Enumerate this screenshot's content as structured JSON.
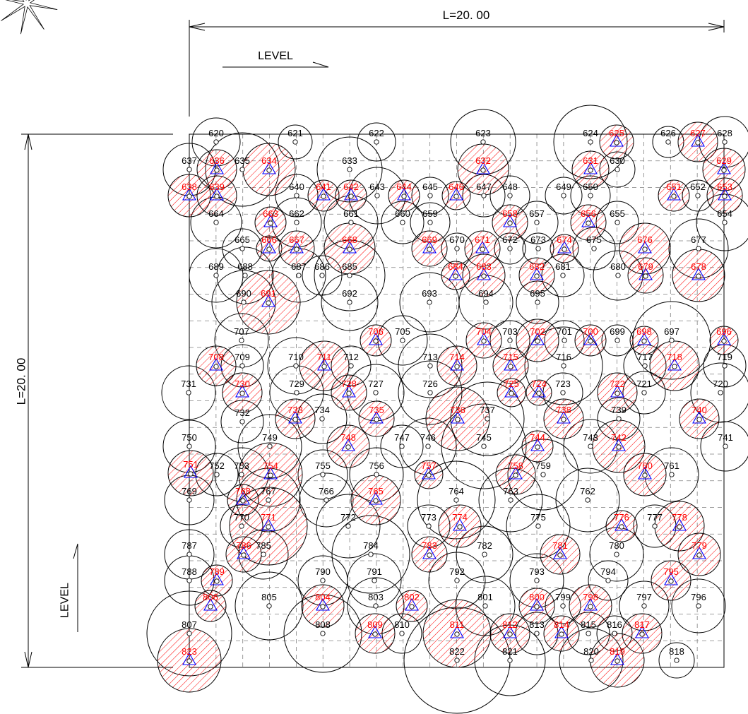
{
  "drawing": {
    "top_dimension": "L=20. 00",
    "left_dimension": "L=20. 00",
    "top_level_label": "LEVEL",
    "left_level_label": "LEVEL"
  },
  "colors": {
    "line": "#000000",
    "label": "#000000",
    "marked_label": "#ff0000",
    "hatch": "#ff0000",
    "triangle": "#0000ff",
    "grid": "#808080"
  },
  "points": [
    {
      "label": "620",
      "marked": false
    },
    {
      "label": "621",
      "marked": false
    },
    {
      "label": "622",
      "marked": false
    },
    {
      "label": "623",
      "marked": false
    },
    {
      "label": "624",
      "marked": false
    },
    {
      "label": "625",
      "marked": true
    },
    {
      "label": "626",
      "marked": false
    },
    {
      "label": "627",
      "marked": true
    },
    {
      "label": "628",
      "marked": false
    },
    {
      "label": "637",
      "marked": false
    },
    {
      "label": "636",
      "marked": true
    },
    {
      "label": "635",
      "marked": false
    },
    {
      "label": "634",
      "marked": true
    },
    {
      "label": "633",
      "marked": false
    },
    {
      "label": "632",
      "marked": true
    },
    {
      "label": "631",
      "marked": true
    },
    {
      "label": "630",
      "marked": false
    },
    {
      "label": "629",
      "marked": true
    },
    {
      "label": "638",
      "marked": true
    },
    {
      "label": "639",
      "marked": true
    },
    {
      "label": "640",
      "marked": false
    },
    {
      "label": "641",
      "marked": true
    },
    {
      "label": "642",
      "marked": true
    },
    {
      "label": "643",
      "marked": false
    },
    {
      "label": "644",
      "marked": true
    },
    {
      "label": "645",
      "marked": false
    },
    {
      "label": "646",
      "marked": true
    },
    {
      "label": "647",
      "marked": false
    },
    {
      "label": "648",
      "marked": false
    },
    {
      "label": "649",
      "marked": false
    },
    {
      "label": "650",
      "marked": false
    },
    {
      "label": "651",
      "marked": true
    },
    {
      "label": "652",
      "marked": false
    },
    {
      "label": "653",
      "marked": true
    },
    {
      "label": "664",
      "marked": false
    },
    {
      "label": "663",
      "marked": true
    },
    {
      "label": "662",
      "marked": false
    },
    {
      "label": "661",
      "marked": false
    },
    {
      "label": "660",
      "marked": false
    },
    {
      "label": "659",
      "marked": false
    },
    {
      "label": "658",
      "marked": true
    },
    {
      "label": "657",
      "marked": false
    },
    {
      "label": "656",
      "marked": true
    },
    {
      "label": "655",
      "marked": false
    },
    {
      "label": "654",
      "marked": false
    },
    {
      "label": "665",
      "marked": false
    },
    {
      "label": "666",
      "marked": true
    },
    {
      "label": "667",
      "marked": true
    },
    {
      "label": "668",
      "marked": true
    },
    {
      "label": "669",
      "marked": true
    },
    {
      "label": "670",
      "marked": false
    },
    {
      "label": "671",
      "marked": true
    },
    {
      "label": "672",
      "marked": false
    },
    {
      "label": "673",
      "marked": false
    },
    {
      "label": "674",
      "marked": true
    },
    {
      "label": "675",
      "marked": false
    },
    {
      "label": "676",
      "marked": true
    },
    {
      "label": "677",
      "marked": false
    },
    {
      "label": "689",
      "marked": false
    },
    {
      "label": "688",
      "marked": false
    },
    {
      "label": "687",
      "marked": false
    },
    {
      "label": "686",
      "marked": false
    },
    {
      "label": "685",
      "marked": false
    },
    {
      "label": "684",
      "marked": true
    },
    {
      "label": "683",
      "marked": true
    },
    {
      "label": "682",
      "marked": true
    },
    {
      "label": "681",
      "marked": false
    },
    {
      "label": "680",
      "marked": false
    },
    {
      "label": "679",
      "marked": true
    },
    {
      "label": "678",
      "marked": true
    },
    {
      "label": "690",
      "marked": false
    },
    {
      "label": "691",
      "marked": true
    },
    {
      "label": "692",
      "marked": false
    },
    {
      "label": "693",
      "marked": false
    },
    {
      "label": "694",
      "marked": false
    },
    {
      "label": "695",
      "marked": false
    },
    {
      "label": "707",
      "marked": false
    },
    {
      "label": "706",
      "marked": true
    },
    {
      "label": "705",
      "marked": false
    },
    {
      "label": "704",
      "marked": true
    },
    {
      "label": "703",
      "marked": false
    },
    {
      "label": "702",
      "marked": true
    },
    {
      "label": "701",
      "marked": false
    },
    {
      "label": "700",
      "marked": true
    },
    {
      "label": "699",
      "marked": false
    },
    {
      "label": "698",
      "marked": true
    },
    {
      "label": "697",
      "marked": false
    },
    {
      "label": "696",
      "marked": true
    },
    {
      "label": "708",
      "marked": true
    },
    {
      "label": "709",
      "marked": false
    },
    {
      "label": "710",
      "marked": false
    },
    {
      "label": "711",
      "marked": true
    },
    {
      "label": "712",
      "marked": false
    },
    {
      "label": "713",
      "marked": false
    },
    {
      "label": "714",
      "marked": true
    },
    {
      "label": "715",
      "marked": true
    },
    {
      "label": "716",
      "marked": false
    },
    {
      "label": "717",
      "marked": false
    },
    {
      "label": "718",
      "marked": true
    },
    {
      "label": "719",
      "marked": false
    },
    {
      "label": "731",
      "marked": false
    },
    {
      "label": "730",
      "marked": true
    },
    {
      "label": "729",
      "marked": false
    },
    {
      "label": "728",
      "marked": true
    },
    {
      "label": "727",
      "marked": false
    },
    {
      "label": "726",
      "marked": false
    },
    {
      "label": "725",
      "marked": true
    },
    {
      "label": "724",
      "marked": true
    },
    {
      "label": "723",
      "marked": false
    },
    {
      "label": "722",
      "marked": true
    },
    {
      "label": "721",
      "marked": false
    },
    {
      "label": "720",
      "marked": false
    },
    {
      "label": "732",
      "marked": false
    },
    {
      "label": "733",
      "marked": true
    },
    {
      "label": "734",
      "marked": false
    },
    {
      "label": "735",
      "marked": true
    },
    {
      "label": "736",
      "marked": true
    },
    {
      "label": "737",
      "marked": false
    },
    {
      "label": "738",
      "marked": true
    },
    {
      "label": "739",
      "marked": false
    },
    {
      "label": "740",
      "marked": true
    },
    {
      "label": "750",
      "marked": false
    },
    {
      "label": "749",
      "marked": false
    },
    {
      "label": "748",
      "marked": true
    },
    {
      "label": "747",
      "marked": false
    },
    {
      "label": "746",
      "marked": false
    },
    {
      "label": "745",
      "marked": false
    },
    {
      "label": "744",
      "marked": true
    },
    {
      "label": "743",
      "marked": false
    },
    {
      "label": "742",
      "marked": true
    },
    {
      "label": "741",
      "marked": false
    },
    {
      "label": "751",
      "marked": true
    },
    {
      "label": "752",
      "marked": false
    },
    {
      "label": "753",
      "marked": false
    },
    {
      "label": "754",
      "marked": true
    },
    {
      "label": "755",
      "marked": false
    },
    {
      "label": "756",
      "marked": false
    },
    {
      "label": "757",
      "marked": true
    },
    {
      "label": "758",
      "marked": true
    },
    {
      "label": "759",
      "marked": false
    },
    {
      "label": "760",
      "marked": true
    },
    {
      "label": "761",
      "marked": false
    },
    {
      "label": "769",
      "marked": false
    },
    {
      "label": "768",
      "marked": true
    },
    {
      "label": "767",
      "marked": false
    },
    {
      "label": "766",
      "marked": false
    },
    {
      "label": "765",
      "marked": true
    },
    {
      "label": "764",
      "marked": false
    },
    {
      "label": "763",
      "marked": false
    },
    {
      "label": "762",
      "marked": false
    },
    {
      "label": "770",
      "marked": false
    },
    {
      "label": "771",
      "marked": true
    },
    {
      "label": "772",
      "marked": false
    },
    {
      "label": "773",
      "marked": false
    },
    {
      "label": "774",
      "marked": true
    },
    {
      "label": "775",
      "marked": false
    },
    {
      "label": "776",
      "marked": true
    },
    {
      "label": "777",
      "marked": false
    },
    {
      "label": "778",
      "marked": true
    },
    {
      "label": "787",
      "marked": false
    },
    {
      "label": "786",
      "marked": true
    },
    {
      "label": "785",
      "marked": false
    },
    {
      "label": "784",
      "marked": false
    },
    {
      "label": "783",
      "marked": true
    },
    {
      "label": "782",
      "marked": false
    },
    {
      "label": "781",
      "marked": true
    },
    {
      "label": "780",
      "marked": false
    },
    {
      "label": "779",
      "marked": true
    },
    {
      "label": "788",
      "marked": false
    },
    {
      "label": "789",
      "marked": true
    },
    {
      "label": "790",
      "marked": false
    },
    {
      "label": "791",
      "marked": false
    },
    {
      "label": "792",
      "marked": false
    },
    {
      "label": "793",
      "marked": false
    },
    {
      "label": "794",
      "marked": false
    },
    {
      "label": "795",
      "marked": true
    },
    {
      "label": "806",
      "marked": true
    },
    {
      "label": "805",
      "marked": false
    },
    {
      "label": "804",
      "marked": true
    },
    {
      "label": "803",
      "marked": false
    },
    {
      "label": "802",
      "marked": true
    },
    {
      "label": "801",
      "marked": false
    },
    {
      "label": "800",
      "marked": true
    },
    {
      "label": "799",
      "marked": false
    },
    {
      "label": "798",
      "marked": true
    },
    {
      "label": "797",
      "marked": false
    },
    {
      "label": "796",
      "marked": false
    },
    {
      "label": "807",
      "marked": false
    },
    {
      "label": "808",
      "marked": false
    },
    {
      "label": "809",
      "marked": true
    },
    {
      "label": "810",
      "marked": false
    },
    {
      "label": "811",
      "marked": true
    },
    {
      "label": "812",
      "marked": true
    },
    {
      "label": "813",
      "marked": false
    },
    {
      "label": "814",
      "marked": true
    },
    {
      "label": "815",
      "marked": false
    },
    {
      "label": "816",
      "marked": false
    },
    {
      "label": "817",
      "marked": true
    },
    {
      "label": "823",
      "marked": true
    },
    {
      "label": "822",
      "marked": false
    },
    {
      "label": "821",
      "marked": false
    },
    {
      "label": "820",
      "marked": false
    },
    {
      "label": "819",
      "marked": true
    },
    {
      "label": "818",
      "marked": false
    }
  ]
}
